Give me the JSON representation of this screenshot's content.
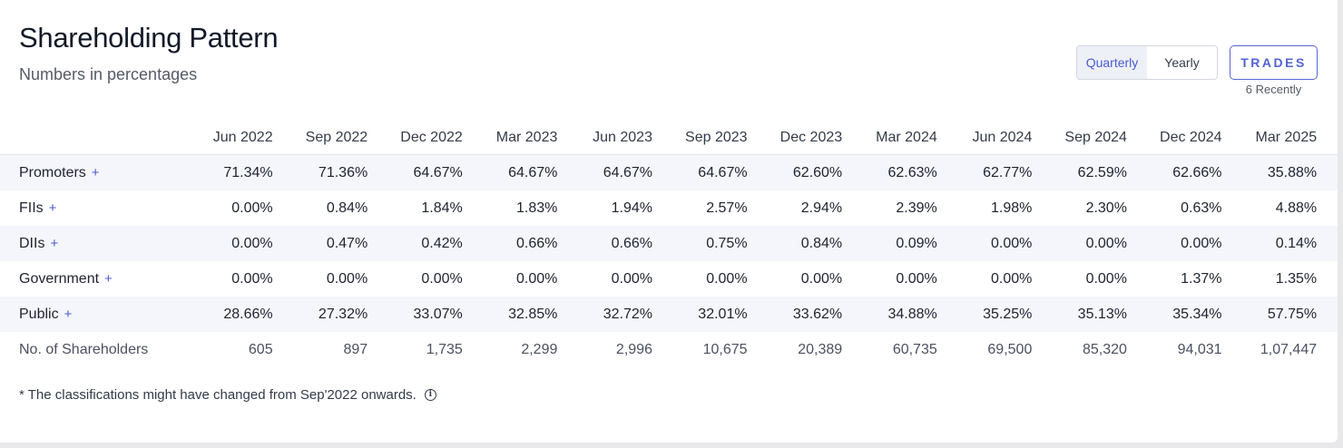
{
  "header": {
    "title": "Shareholding Pattern",
    "subtitle": "Numbers in percentages"
  },
  "toggle": {
    "options": [
      "Quarterly",
      "Yearly"
    ],
    "selected": "Quarterly"
  },
  "trades": {
    "label": "TRADES",
    "sub": "6 Recently"
  },
  "table": {
    "columns": [
      "Jun 2022",
      "Sep 2022",
      "Dec 2022",
      "Mar 2023",
      "Jun 2023",
      "Sep 2023",
      "Dec 2023",
      "Mar 2024",
      "Jun 2024",
      "Sep 2024",
      "Dec 2024",
      "Mar 2025"
    ],
    "rows": [
      {
        "label": "Promoters",
        "expand": "+",
        "values": [
          "71.34%",
          "71.36%",
          "64.67%",
          "64.67%",
          "64.67%",
          "64.67%",
          "62.60%",
          "62.63%",
          "62.77%",
          "62.59%",
          "62.66%",
          "35.88%"
        ]
      },
      {
        "label": "FIIs",
        "expand": "+",
        "values": [
          "0.00%",
          "0.84%",
          "1.84%",
          "1.83%",
          "1.94%",
          "2.57%",
          "2.94%",
          "2.39%",
          "1.98%",
          "2.30%",
          "0.63%",
          "4.88%"
        ]
      },
      {
        "label": "DIIs",
        "expand": "+",
        "values": [
          "0.00%",
          "0.47%",
          "0.42%",
          "0.66%",
          "0.66%",
          "0.75%",
          "0.84%",
          "0.09%",
          "0.00%",
          "0.00%",
          "0.00%",
          "0.14%"
        ]
      },
      {
        "label": "Government",
        "expand": "+",
        "values": [
          "0.00%",
          "0.00%",
          "0.00%",
          "0.00%",
          "0.00%",
          "0.00%",
          "0.00%",
          "0.00%",
          "0.00%",
          "0.00%",
          "1.37%",
          "1.35%"
        ]
      },
      {
        "label": "Public",
        "expand": "+",
        "values": [
          "28.66%",
          "27.32%",
          "33.07%",
          "32.85%",
          "32.72%",
          "32.01%",
          "33.62%",
          "34.88%",
          "35.25%",
          "35.13%",
          "35.34%",
          "57.75%"
        ]
      },
      {
        "label": "No. of Shareholders",
        "expand": "",
        "values": [
          "605",
          "897",
          "1,735",
          "2,299",
          "2,996",
          "10,675",
          "20,389",
          "60,735",
          "69,500",
          "85,320",
          "94,031",
          "1,07,447"
        ]
      }
    ]
  },
  "footnote": {
    "text": "* The classifications might have changed from Sep'2022 onwards.",
    "icon": "info-icon"
  }
}
